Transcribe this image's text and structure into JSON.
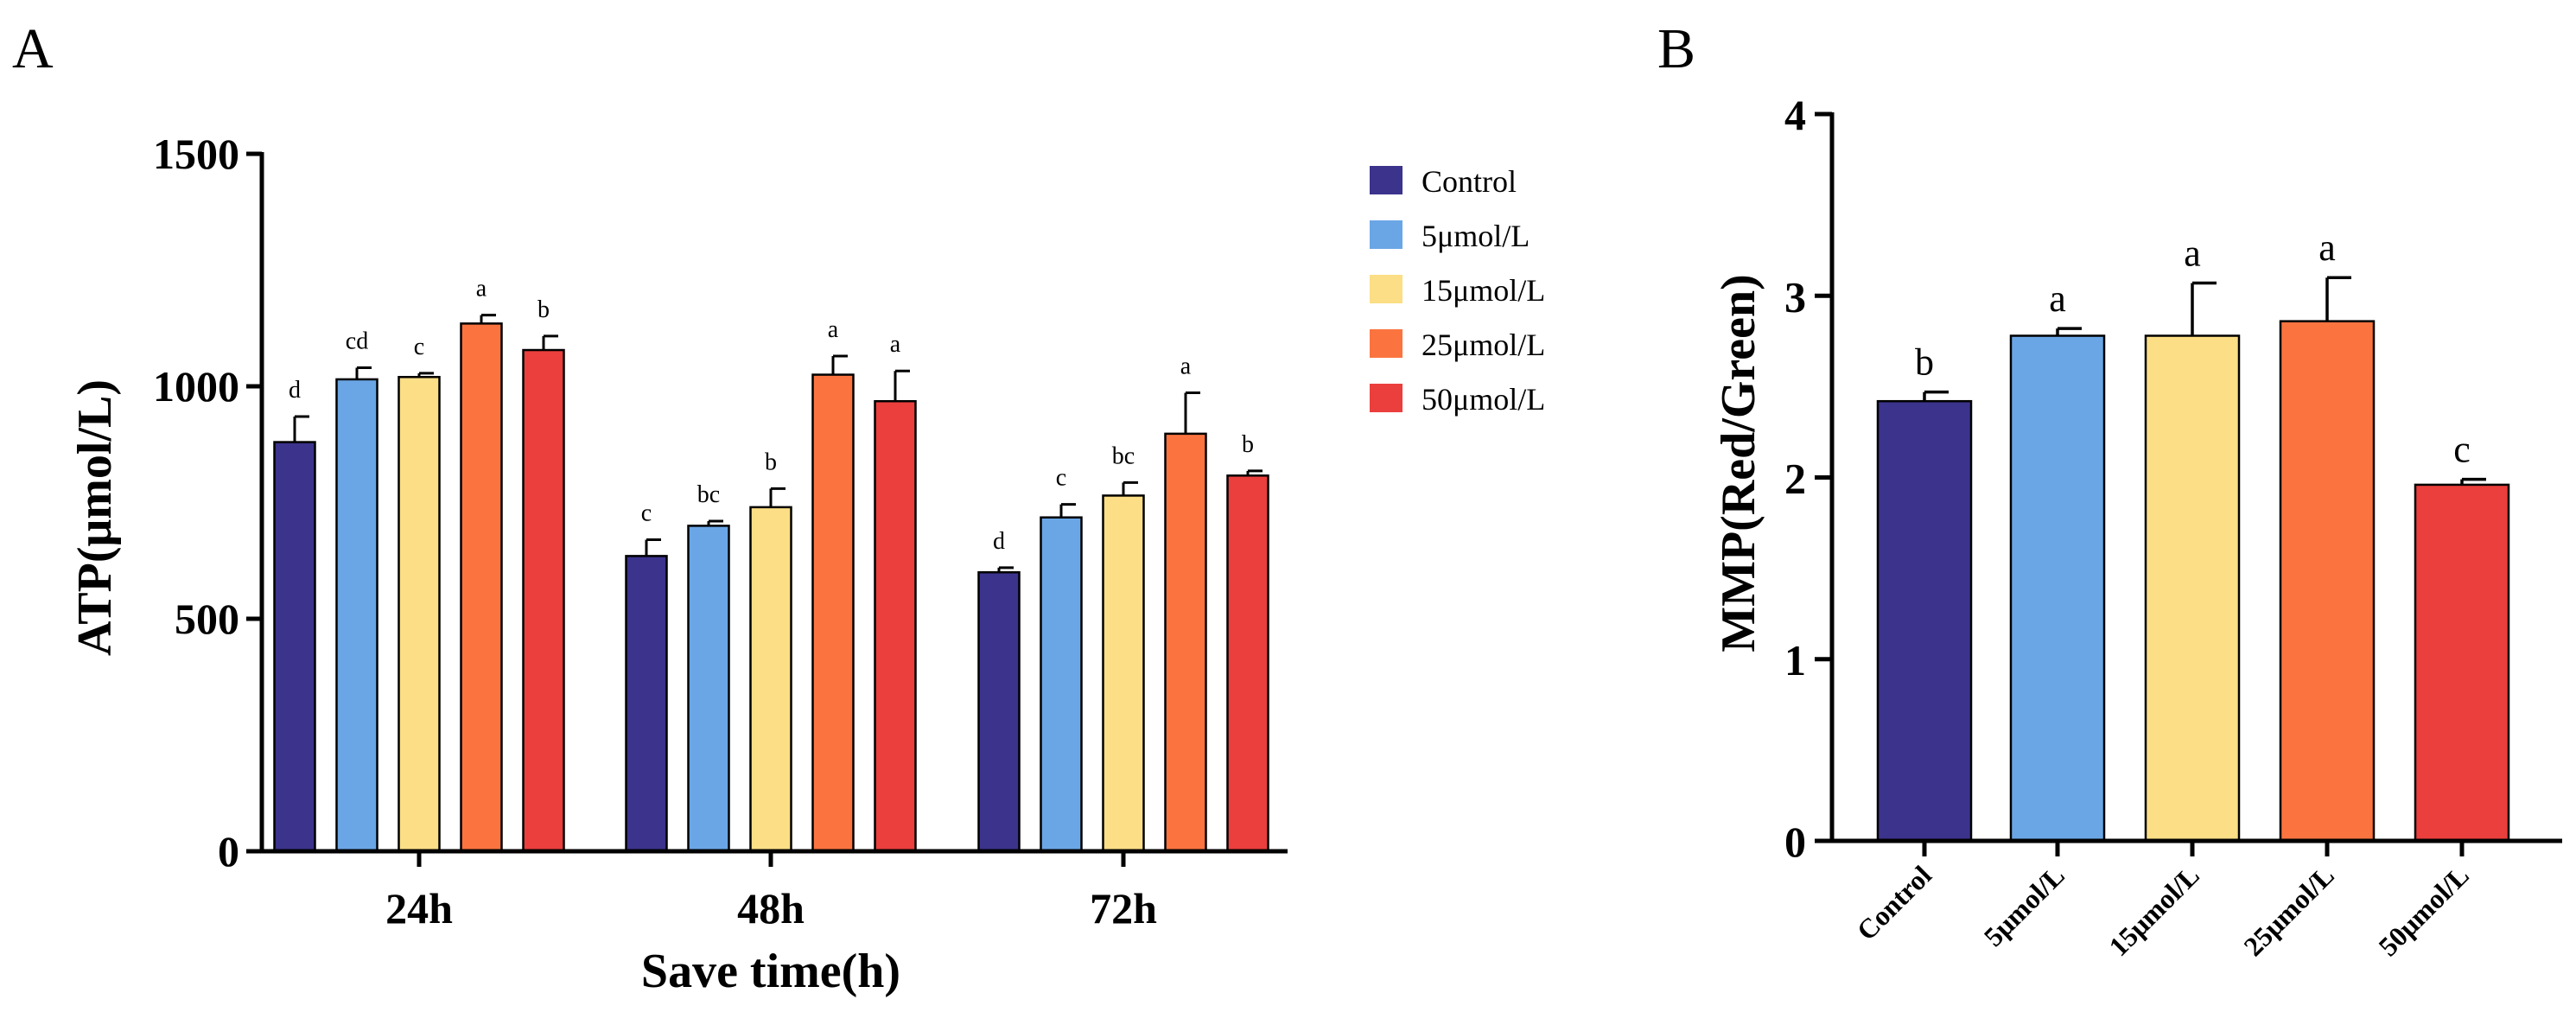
{
  "chart_data": [
    {
      "panel": "A",
      "type": "bar",
      "ylabel": "ATP(μmol/L)",
      "xlabel": "Save time(h)",
      "ylim": [
        0,
        1500
      ],
      "yticks": [
        0,
        500,
        1000,
        1500
      ],
      "categories": [
        "24h",
        "48h",
        "72h"
      ],
      "series": [
        {
          "name": "Control",
          "color": "#3B338C",
          "values": [
            880,
            635,
            600
          ],
          "errors": [
            55,
            35,
            10
          ],
          "letters": [
            "d",
            "c",
            "d"
          ]
        },
        {
          "name": "5μmol/L",
          "color": "#6AA6E6",
          "values": [
            1015,
            700,
            718
          ],
          "errors": [
            25,
            10,
            28
          ],
          "letters": [
            "cd",
            "bc",
            "c"
          ]
        },
        {
          "name": "15μmol/L",
          "color": "#FBDE85",
          "values": [
            1020,
            740,
            765
          ],
          "errors": [
            8,
            40,
            28
          ],
          "letters": [
            "c",
            "b",
            "bc"
          ]
        },
        {
          "name": "25μmol/L",
          "color": "#FB743F",
          "values": [
            1135,
            1025,
            898
          ],
          "errors": [
            18,
            40,
            88
          ],
          "letters": [
            "a",
            "a",
            "a"
          ]
        },
        {
          "name": "50μmol/L",
          "color": "#EA3F3C",
          "values": [
            1078,
            968,
            808
          ],
          "errors": [
            30,
            65,
            10
          ],
          "letters": [
            "b",
            "a",
            "b"
          ]
        }
      ]
    },
    {
      "panel": "B",
      "type": "bar",
      "ylabel": "MMP(Red/Green)",
      "xlabel": "",
      "ylim": [
        0,
        4
      ],
      "yticks": [
        0,
        1,
        2,
        3,
        4
      ],
      "categories": [
        "Control",
        "5μmol/L",
        "15μmol/L",
        "25μmol/L",
        "50μmol/L"
      ],
      "colors": [
        "#3B338C",
        "#6AA6E6",
        "#FBDE85",
        "#FB743F",
        "#EA3F3C"
      ],
      "values": [
        2.42,
        2.78,
        2.78,
        2.86,
        1.96
      ],
      "errors": [
        0.05,
        0.04,
        0.29,
        0.24,
        0.03
      ],
      "letters": [
        "b",
        "a",
        "a",
        "a",
        "c"
      ]
    }
  ]
}
